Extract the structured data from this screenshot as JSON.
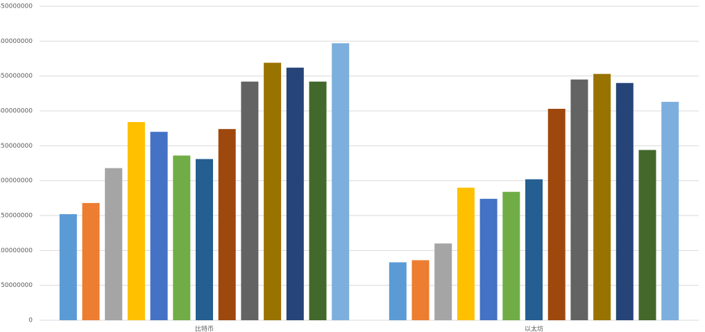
{
  "chart_data": {
    "type": "bar",
    "categories": [
      "比特币",
      "以太坊"
    ],
    "series": [
      {
        "color": "#5b9bd5",
        "values": [
          152000000,
          83000000
        ]
      },
      {
        "color": "#ed7d31",
        "values": [
          168000000,
          86000000
        ]
      },
      {
        "color": "#a5a5a5",
        "values": [
          218000000,
          110000000
        ]
      },
      {
        "color": "#ffc000",
        "values": [
          284000000,
          190000000
        ]
      },
      {
        "color": "#4472c4",
        "values": [
          270000000,
          174000000
        ]
      },
      {
        "color": "#70ad47",
        "values": [
          236000000,
          184000000
        ]
      },
      {
        "color": "#255e91",
        "values": [
          231000000,
          202000000
        ]
      },
      {
        "color": "#9e480e",
        "values": [
          274000000,
          303000000
        ]
      },
      {
        "color": "#636363",
        "values": [
          342000000,
          345000000
        ]
      },
      {
        "color": "#997300",
        "values": [
          369000000,
          353000000
        ]
      },
      {
        "color": "#264478",
        "values": [
          362000000,
          340000000
        ]
      },
      {
        "color": "#43682b",
        "values": [
          342000000,
          244000000
        ]
      },
      {
        "color": "#7cafdd",
        "values": [
          397000000,
          313000000
        ]
      }
    ],
    "ylim": [
      0,
      450000000
    ],
    "yticks": [
      0,
      50000000,
      100000000,
      150000000,
      200000000,
      250000000,
      300000000,
      350000000,
      400000000,
      450000000
    ],
    "grid": true
  }
}
